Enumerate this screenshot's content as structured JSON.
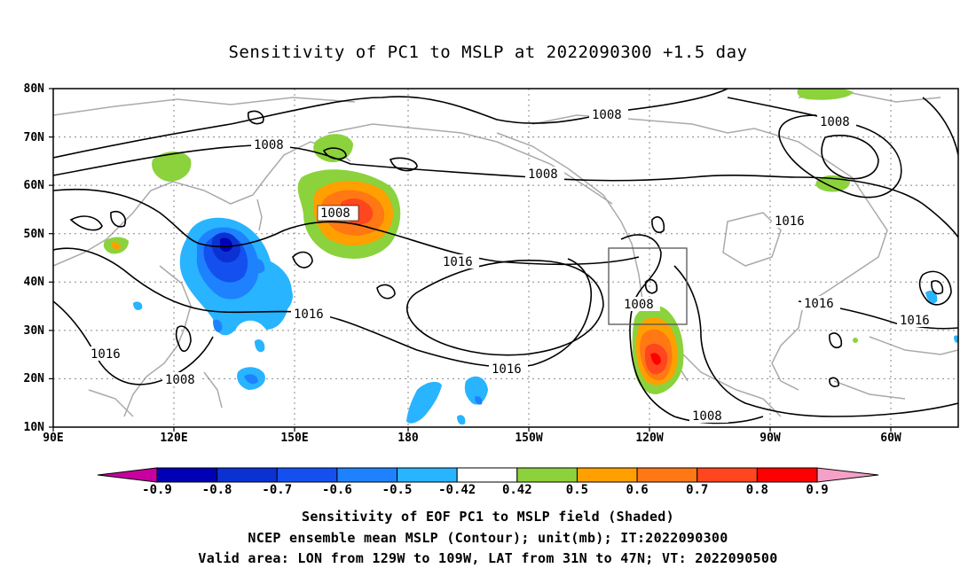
{
  "title": "Sensitivity of PC1 to MSLP at 2022090300 +1.5 day",
  "lat_labels": [
    "80N",
    "70N",
    "60N",
    "50N",
    "40N",
    "30N",
    "20N",
    "10N"
  ],
  "lon_labels": [
    "90E",
    "120E",
    "150E",
    "180",
    "150W",
    "120W",
    "90W",
    "60W"
  ],
  "contour_labels": [
    "1008",
    "1008",
    "1008",
    "1008",
    "1008",
    "1008",
    "1008",
    "1016",
    "1016",
    "1016",
    "1016",
    "1016",
    "1016",
    "1016",
    "1008"
  ],
  "valid_box": {
    "lon_from": "129W",
    "lon_to": "109W",
    "lat_from": "31N",
    "lat_to": "47N"
  },
  "colorbar": {
    "labels": [
      "-0.9",
      "-0.8",
      "-0.7",
      "-0.6",
      "-0.5",
      "-0.42",
      "0.42",
      "0.5",
      "0.6",
      "0.7",
      "0.8",
      "0.9"
    ],
    "colors": [
      "#0000b4",
      "#0a32d2",
      "#1450f0",
      "#1e82ff",
      "#28b4ff",
      "#ffffff",
      "#8cd23c",
      "#ffa000",
      "#ff7814",
      "#ff461e",
      "#ff0000"
    ],
    "low_end_color": "#c800a0",
    "high_end_color": "#f5a0c8"
  },
  "footer": {
    "line1": "Sensitivity of EOF PC1 to MSLP field (Shaded)",
    "line2": "NCEP ensemble mean MSLP (Contour); unit(mb); IT:2022090300",
    "line3": "Valid area: LON from 129W to 109W, LAT from 31N to 47N; VT: 2022090500"
  }
}
